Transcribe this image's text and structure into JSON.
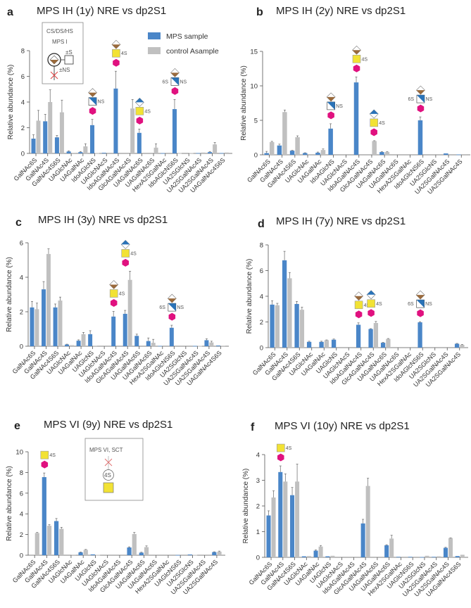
{
  "colors": {
    "mps": "#4a86c8",
    "control": "#c0c0c0",
    "hexagon": "#e0117f",
    "square": "#f2e234",
    "diamond_brown": "#9a6a3c",
    "diamond_blue": "#2a73b8",
    "cross": "#e04040"
  },
  "legend": {
    "mps": "MPS sample",
    "control": "control Asample"
  },
  "inset_a": {
    "line1": "CS/DS/HS",
    "line2": "MPS I",
    "s_label": "±S",
    "ns_label": "±NS"
  },
  "inset_e": {
    "line1": "MPS VI, SCT",
    "ring_label": "4S"
  },
  "chart_data": [
    {
      "type": "bar",
      "letter": "a",
      "title": "MPS IH (1y) NRE vs dp2S1",
      "ylabel": "Relative abundance (%)",
      "ylim": [
        0,
        8
      ],
      "yticks": [
        0,
        2,
        4,
        6,
        8
      ],
      "categories": [
        "GalNAc6S",
        "GalNAc4S",
        "GalNAc4S6S",
        "UAGlcNAc",
        "UAGalNAc",
        "IdoAGlcNS",
        "UAGlcNAcS",
        "IdoAGalNAc4S",
        "GlcAGalNAc4S",
        "UAGalNAc6S",
        "UAGalNAc6S",
        "HexA2SGalNAc",
        "IdoAGlcNS6S",
        "UA2SGlcNS",
        "UA2SGalNAc4S",
        "UA2SGalNAc4S",
        "UAGalNAc4S6S"
      ],
      "series": [
        {
          "name": "MPS sample",
          "values": [
            1.15,
            2.5,
            1.25,
            0.15,
            0.1,
            2.2,
            0.05,
            5.05,
            0,
            1.6,
            0,
            0.02,
            3.45,
            0,
            0.03,
            0.1,
            0.03
          ],
          "errors": [
            0.3,
            0.55,
            0.15,
            0.05,
            0.05,
            0.45,
            0,
            1.35,
            0,
            0.3,
            0,
            0,
            0.75,
            0,
            0,
            0.05,
            0
          ]
        },
        {
          "name": "control Asample",
          "values": [
            2.55,
            4.0,
            3.2,
            0.05,
            0.55,
            0.03,
            0,
            0,
            3.5,
            0,
            0.45,
            0,
            0.02,
            0.03,
            0.07,
            0.7,
            0.07
          ],
          "errors": [
            0.8,
            0.95,
            0.95,
            0,
            0.2,
            0,
            0,
            0,
            0.7,
            0,
            0.3,
            0,
            0,
            0,
            0,
            0.15,
            0
          ]
        }
      ],
      "annotations": [
        {
          "category": 5,
          "glycan": "ido-glcns",
          "right": "NS",
          "left": ""
        },
        {
          "category": 7,
          "glycan": "ido-galnac",
          "right": "4S",
          "left": ""
        },
        {
          "category": 9,
          "glycan": "glca-galnac",
          "right": "4S",
          "left": ""
        },
        {
          "category": 12,
          "glycan": "ido-glcns",
          "right": "NS",
          "left": "6S"
        }
      ]
    },
    {
      "type": "bar",
      "letter": "b",
      "title": "MPS IH (2y) NRE vs dp2S1",
      "ylabel": "Relative abundance (%)",
      "ylim": [
        0,
        15
      ],
      "yticks": [
        0,
        5,
        10,
        15
      ],
      "categories": [
        "GalNAc6S",
        "GalNAc4S",
        "GalNAc4S6S",
        "UAGlcNAc",
        "UAGalNAc",
        "IdoAGlcNS",
        "UAGlcNAcS",
        "IdoAGalNAc4S",
        "GlcAGalNAc4S",
        "UAGalNAc6S",
        "UAGalNAc6S",
        "HexA2SGalNAc",
        "IdoAGlcNS6S",
        "UA2SGlcNS",
        "UA2SGalNAc4S",
        "UA2SGalNAc4S"
      ],
      "series": [
        {
          "name": "MPS sample",
          "values": [
            0.25,
            1.35,
            0.6,
            0.25,
            0.3,
            3.8,
            0,
            10.5,
            0,
            0.4,
            0,
            0,
            5.0,
            0,
            0.2,
            0.05
          ],
          "errors": [
            0.25,
            0.2,
            0.05,
            0.05,
            0.1,
            0.7,
            0,
            0.8,
            0,
            0.05,
            0,
            0,
            0.5,
            0,
            0,
            0
          ]
        },
        {
          "name": "control Asample",
          "values": [
            1.85,
            6.2,
            2.55,
            0,
            0.7,
            0,
            0,
            0,
            2.0,
            0.4,
            0,
            0,
            0,
            0,
            0,
            0.1
          ],
          "errors": [
            0.1,
            0.3,
            0.2,
            0,
            0.15,
            0,
            0,
            0,
            0.05,
            0.05,
            0,
            0,
            0,
            0,
            0,
            0
          ]
        }
      ],
      "annotations": [
        {
          "category": 5,
          "glycan": "ido-glcns",
          "right": "NS",
          "left": ""
        },
        {
          "category": 7,
          "glycan": "ido-galnac",
          "right": "4S",
          "left": ""
        },
        {
          "category": 8,
          "glycan": "glca-galnac",
          "right": "4S",
          "left": ""
        },
        {
          "category": 12,
          "glycan": "ido-glcns",
          "right": "NS",
          "left": "6S"
        }
      ]
    },
    {
      "type": "bar",
      "letter": "c",
      "title": "MPS IH (3y) NRE vs dp2S1",
      "ylabel": "Relative abundance (%)",
      "ylim": [
        0,
        6
      ],
      "yticks": [
        0,
        2,
        4,
        6
      ],
      "categories": [
        "GalNAc6S",
        "GalNAc4S",
        "GalNAc4S6S",
        "UAGlcNAc",
        "UAGalNAc",
        "UAGlcNS",
        "UAGlcNAcS",
        "IdoAGalNAc4S",
        "GlcAGalNAc4S",
        "UAGalNAc6S",
        "UAGalNAc6S",
        "HexA2SGalNAc",
        "IdoAGlcNS6S",
        "UA2SGlcNS",
        "UA2SGalNAc4S",
        "UA2SGalNAc4S",
        "UAGalNAc4S6S"
      ],
      "series": [
        {
          "name": "MPS sample",
          "values": [
            2.25,
            3.3,
            2.25,
            0.1,
            0.32,
            0.7,
            0,
            1.72,
            1.88,
            0.6,
            0.3,
            0.02,
            1.07,
            0,
            0.02,
            0.35,
            0.04
          ],
          "errors": [
            0.35,
            0.45,
            0.2,
            0.02,
            0.05,
            0.2,
            0,
            0.3,
            0.2,
            0.1,
            0.18,
            0,
            0.15,
            0,
            0,
            0.08,
            0
          ]
        },
        {
          "name": "control Asample",
          "values": [
            2.15,
            5.35,
            2.65,
            0.06,
            0.7,
            0.03,
            0,
            0,
            3.85,
            0,
            0.2,
            0,
            0,
            0,
            0.02,
            0.22,
            0.03
          ],
          "errors": [
            0.35,
            0.3,
            0.2,
            0,
            0.1,
            0,
            0,
            0,
            0.5,
            0,
            0.2,
            0,
            0,
            0,
            0,
            0.07,
            0
          ]
        }
      ],
      "annotations": [
        {
          "category": 7,
          "glycan": "ido-galnac",
          "right": "4S",
          "left": ""
        },
        {
          "category": 8,
          "glycan": "glca-galnac",
          "right": "4S",
          "left": ""
        },
        {
          "category": 12,
          "glycan": "ido-glcns",
          "right": "NS",
          "left": "6S"
        }
      ]
    },
    {
      "type": "bar",
      "letter": "d",
      "title": "MPS IH (7y) NRE vs dp2S1",
      "ylabel": "Relative abundance (%)",
      "ylim": [
        0,
        8
      ],
      "yticks": [
        0,
        2,
        4,
        6,
        8
      ],
      "categories": [
        "GalNAc6S",
        "GalNAc4S",
        "GalNAc4S6S",
        "UAGlcNAc",
        "UAGalNAc",
        "UAGlcNS",
        "UAGlcNAcS",
        "IdoAGalNAc4S",
        "GlcAGalNAc4S",
        "UAGalNAc6S",
        "UAGalNAc6S",
        "HexA2SGalNAc",
        "IdoAGlcNS6S",
        "UA2SGlcNS",
        "UA2SGalNAc4S",
        "UA2SGalNAc4S"
      ],
      "series": [
        {
          "name": "MPS sample",
          "values": [
            3.35,
            6.8,
            3.4,
            0.45,
            0.45,
            0.62,
            0,
            1.78,
            1.45,
            0.38,
            0,
            0,
            1.97,
            0,
            0,
            0.3
          ],
          "errors": [
            0.3,
            0.7,
            0.2,
            0.05,
            0.05,
            0.05,
            0,
            0.15,
            0.03,
            0.03,
            0,
            0,
            0.05,
            0,
            0,
            0.03
          ]
        },
        {
          "name": "control Asample",
          "values": [
            3.3,
            5.4,
            2.95,
            0,
            0.58,
            0,
            0,
            0,
            1.92,
            0.68,
            0,
            0,
            0,
            0,
            0,
            0.22
          ],
          "errors": [
            0.15,
            0.45,
            0.2,
            0,
            0.02,
            0,
            0,
            0,
            0.12,
            0.03,
            0,
            0,
            0,
            0,
            0,
            0.03
          ]
        }
      ],
      "annotations": [
        {
          "category": 7,
          "glycan": "ido-galnac",
          "right": "4S",
          "left": ""
        },
        {
          "category": 8,
          "glycan": "glca-galnac",
          "right": "4S",
          "left": ""
        },
        {
          "category": 12,
          "glycan": "ido-glcns",
          "right": "NS",
          "left": "6S"
        }
      ]
    },
    {
      "type": "bar",
      "letter": "e",
      "title": "MPS VI (9y) NRE vs dp2S1",
      "ylabel": "Relative abundance (%)",
      "ylim": [
        0,
        10
      ],
      "yticks": [
        0,
        2,
        4,
        6,
        8,
        10
      ],
      "categories": [
        "GalNAc6S",
        "GalNAc4S",
        "GalNAc4S6S",
        "UAGlcNAc",
        "UAGalNAc",
        "UAGlcNS",
        "UAGlcNAcS",
        "IdoAGalNAc4S",
        "GlcAGalNAc4S",
        "UAGalNAc6S",
        "UAGalNAc6S",
        "HexA2SGalNAc",
        "UAGlcNS6S",
        "UA2SGlcNS",
        "UA2SGalNAc4S",
        "UA2SGalNAc4S"
      ],
      "series": [
        {
          "name": "MPS sample",
          "values": [
            0,
            7.55,
            3.3,
            0,
            0.28,
            0.08,
            0,
            0,
            0.75,
            0.25,
            0,
            0,
            0.02,
            0.07,
            0,
            0.3
          ],
          "errors": [
            0,
            0.4,
            0.25,
            0,
            0.03,
            0,
            0,
            0,
            0.06,
            0.04,
            0,
            0,
            0,
            0,
            0,
            0.03
          ]
        },
        {
          "name": "control Asample",
          "values": [
            2.15,
            2.85,
            2.55,
            0.05,
            0.52,
            0.03,
            0,
            0,
            2.05,
            0.78,
            0,
            0,
            0,
            0.03,
            0,
            0.35
          ],
          "errors": [
            0.05,
            0.1,
            0.15,
            0,
            0.04,
            0,
            0,
            0,
            0.15,
            0.12,
            0,
            0,
            0,
            0,
            0,
            0.05
          ]
        }
      ],
      "annotations": [
        {
          "category": 1,
          "glycan": "galnac",
          "right": "4S",
          "left": ""
        }
      ]
    },
    {
      "type": "bar",
      "letter": "f",
      "title": "MPS VI (10y) NRE vs dp2S1",
      "ylabel": "Relative abundance (%)",
      "ylim": [
        0,
        4
      ],
      "yticks": [
        0,
        1,
        2,
        3,
        4
      ],
      "categories": [
        "GalNAc6S",
        "GalNAc4S",
        "GalNAc4S6S",
        "UAGlcNAc",
        "UAGalNAc",
        "UAGlcNS",
        "UAGlcNAcS",
        "IdoAGalNAc4S",
        "GlcAGalNAc4S",
        "UAGalNAc6S",
        "UAGalNAc6S",
        "HexA2SGalNAc",
        "UAGlcNS6S",
        "UA2SGlcNS",
        "UA2SGalNAc4S",
        "UA2SGalNAc4S",
        "UAGalNAc4S6S"
      ],
      "series": [
        {
          "name": "MPS sample",
          "values": [
            1.63,
            3.32,
            2.42,
            0.04,
            0.26,
            0.04,
            0,
            0,
            1.32,
            0,
            0.47,
            0.02,
            0.02,
            0.01,
            0.02,
            0.37,
            0.05
          ],
          "errors": [
            0.18,
            0.24,
            0.3,
            0,
            0.03,
            0,
            0,
            0,
            0.16,
            0,
            0.02,
            0,
            0,
            0,
            0,
            0.02,
            0
          ]
        },
        {
          "name": "control Asample",
          "values": [
            2.33,
            2.95,
            2.95,
            0.05,
            0.42,
            0.06,
            0,
            0,
            2.78,
            0,
            0.73,
            0,
            0,
            0.06,
            0.04,
            0.75,
            0.1
          ],
          "errors": [
            0.26,
            0.3,
            0.68,
            0,
            0.04,
            0,
            0,
            0,
            0.3,
            0,
            0.13,
            0,
            0,
            0,
            0,
            0.01,
            0
          ]
        }
      ],
      "annotations": [
        {
          "category": 1,
          "glycan": "galnac",
          "right": "4S",
          "left": ""
        }
      ]
    }
  ]
}
